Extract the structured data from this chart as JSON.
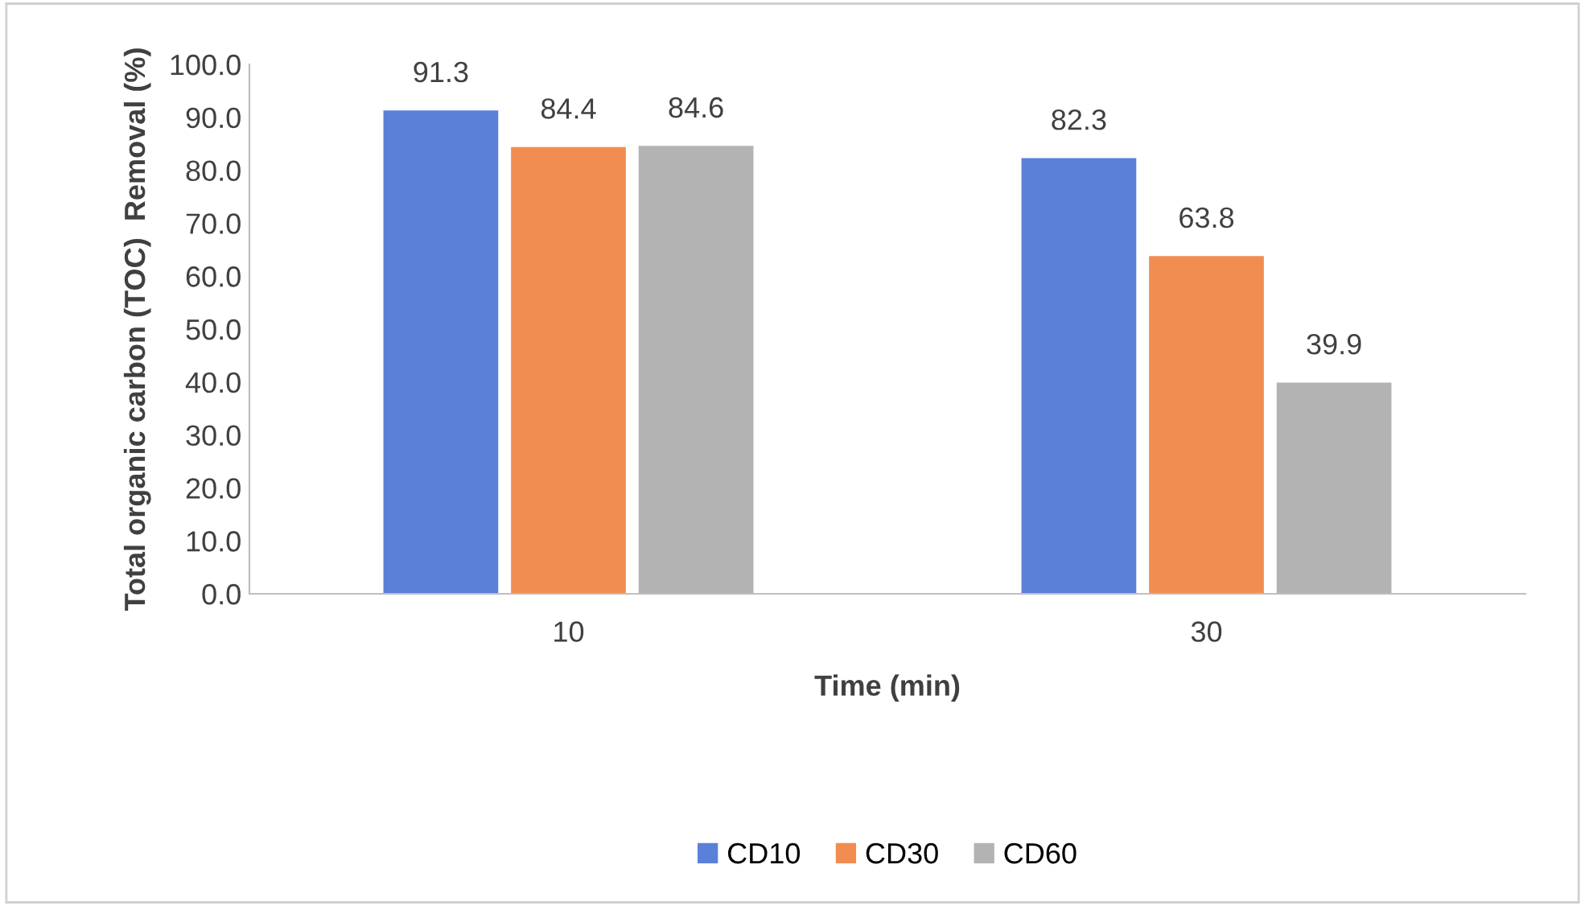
{
  "chart_data": {
    "type": "bar",
    "xlabel": "Time (min)",
    "ylabel": "Total organic carbon (TOC)  Removal (%)",
    "categories": [
      "10",
      "30"
    ],
    "series": [
      {
        "name": "CD10",
        "color": "#5b80d8",
        "values": [
          91.3,
          82.3
        ]
      },
      {
        "name": "CD30",
        "color": "#f28d52",
        "values": [
          84.4,
          63.8
        ]
      },
      {
        "name": "CD60",
        "color": "#b3b3b3",
        "values": [
          84.6,
          39.9
        ]
      }
    ],
    "ylim": [
      0,
      100
    ],
    "yticks": [
      {
        "value": 0,
        "label": "0.0"
      },
      {
        "value": 10,
        "label": "10.0"
      },
      {
        "value": 20,
        "label": "20.0"
      },
      {
        "value": 30,
        "label": "30.0"
      },
      {
        "value": 40,
        "label": "40.0"
      },
      {
        "value": 50,
        "label": "50.0"
      },
      {
        "value": 60,
        "label": "60.0"
      },
      {
        "value": 70,
        "label": "70.0"
      },
      {
        "value": 80,
        "label": "80.0"
      },
      {
        "value": 90,
        "label": "90.0"
      },
      {
        "value": 100,
        "label": "100.0"
      }
    ],
    "data_labels": true,
    "legend": "bottom",
    "grid": false
  }
}
